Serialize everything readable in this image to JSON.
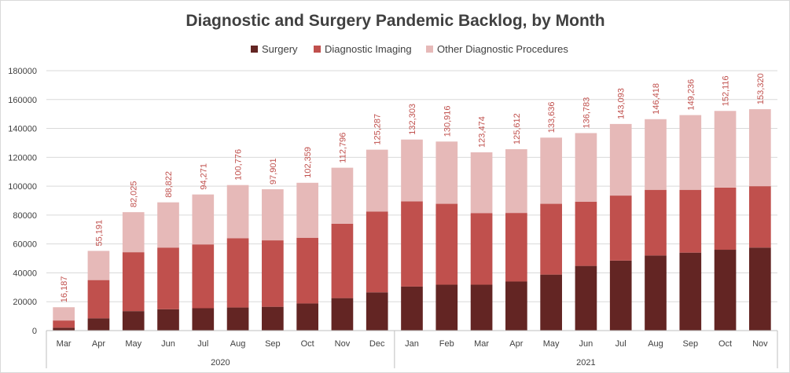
{
  "chart_data": {
    "type": "bar",
    "stacked": true,
    "title": "Diagnostic and Surgery Pandemic Backlog, by Month",
    "xlabel": "",
    "ylabel": "",
    "ylim": [
      0,
      180000
    ],
    "yticks": [
      "0",
      "20000",
      "40000",
      "60000",
      "80000",
      "100000",
      "120000",
      "140000",
      "160000",
      "180000"
    ],
    "yticks_values": [
      0,
      20000,
      40000,
      60000,
      80000,
      100000,
      120000,
      140000,
      160000,
      180000
    ],
    "legend_position": "top",
    "categories": [
      "Mar",
      "Apr",
      "May",
      "Jun",
      "Jul",
      "Aug",
      "Sep",
      "Oct",
      "Nov",
      "Dec",
      "Jan",
      "Feb",
      "Mar",
      "Apr",
      "May",
      "Jun",
      "Jul",
      "Aug",
      "Sep",
      "Oct",
      "Nov"
    ],
    "groups": [
      {
        "label": "2020",
        "count": 10
      },
      {
        "label": "2021",
        "count": 11
      }
    ],
    "series": [
      {
        "name": "Surgery",
        "color": "#632523",
        "values": [
          2000,
          8500,
          13500,
          14800,
          15500,
          16000,
          16500,
          18800,
          22500,
          26500,
          30500,
          31800,
          31800,
          34000,
          38800,
          44800,
          48500,
          52000,
          54000,
          56000,
          57500
        ]
      },
      {
        "name": "Diagnostic Imaging",
        "color": "#c0504d",
        "values": [
          5000,
          26500,
          40800,
          42700,
          44200,
          48000,
          46000,
          45500,
          51500,
          56000,
          59000,
          56000,
          49500,
          47500,
          49000,
          44500,
          45000,
          45500,
          43500,
          43000,
          42500
        ]
      },
      {
        "name": "Other Diagnostic Procedures",
        "color": "#e6b9b8",
        "values": [
          9187,
          20191,
          27725,
          31322,
          34571,
          36776,
          35401,
          38059,
          38796,
          42787,
          42803,
          43116,
          42174,
          44112,
          45836,
          47483,
          49593,
          48918,
          51736,
          53116,
          53320
        ]
      }
    ],
    "totals": [
      16187,
      55191,
      82025,
      88822,
      94271,
      100776,
      97901,
      102359,
      112796,
      125287,
      132303,
      130916,
      123474,
      125612,
      133636,
      136783,
      143093,
      146418,
      149236,
      152116,
      153320
    ],
    "total_labels": [
      "16,187",
      "55,191",
      "82,025",
      "88,822",
      "94,271",
      "100,776",
      "97,901",
      "102,359",
      "112,796",
      "125,287",
      "132,303",
      "130,916",
      "123,474",
      "125,612",
      "133,636",
      "136,783",
      "143,093",
      "146,418",
      "149,236",
      "152,116",
      "153,320"
    ]
  }
}
